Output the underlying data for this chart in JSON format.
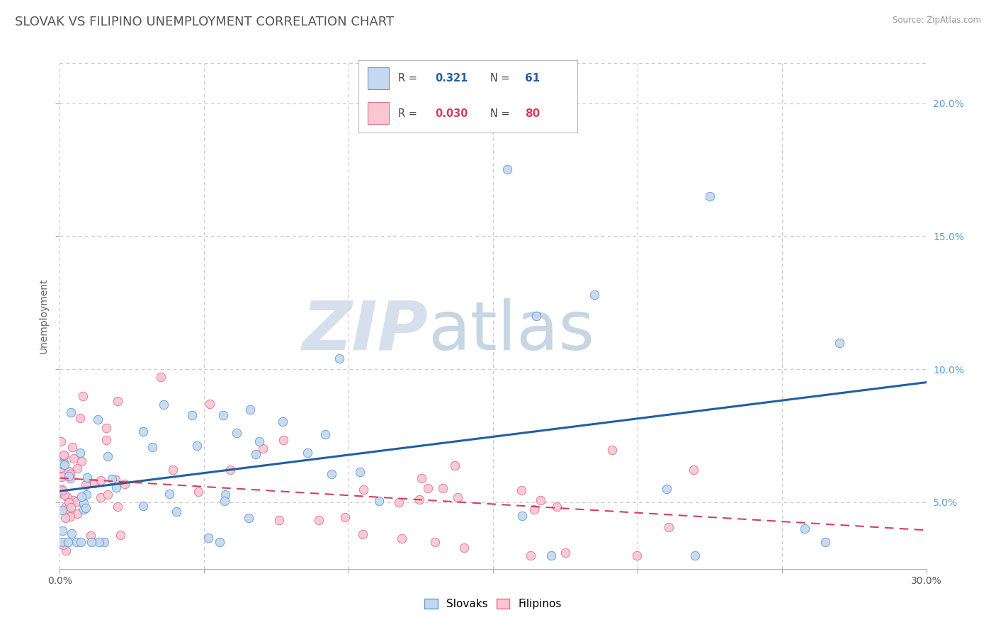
{
  "title": "SLOVAK VS FILIPINO UNEMPLOYMENT CORRELATION CHART",
  "source": "Source: ZipAtlas.com",
  "ylabel": "Unemployment",
  "xlim": [
    0.0,
    0.3
  ],
  "ylim": [
    0.025,
    0.215
  ],
  "xticks": [
    0.0,
    0.05,
    0.1,
    0.15,
    0.2,
    0.25,
    0.3
  ],
  "xtick_labels": [
    "0.0%",
    "",
    "",
    "",
    "",
    "",
    "30.0%"
  ],
  "ytick_vals_right": [
    0.05,
    0.1,
    0.15,
    0.2
  ],
  "ytick_labels_right": [
    "5.0%",
    "10.0%",
    "15.0%",
    "20.0%"
  ],
  "slovak_color": "#c5d8ef",
  "slovak_edge_color": "#5b9bd5",
  "filipino_color": "#f9c6d2",
  "filipino_edge_color": "#e07090",
  "trend_slovak_color": "#2060a0",
  "trend_filipino_color": "#d04060",
  "R_slovak": 0.321,
  "N_slovak": 61,
  "R_filipino": 0.03,
  "N_filipino": 80,
  "background_color": "#ffffff",
  "grid_color": "#c8c8c8",
  "title_color": "#555555",
  "title_fontsize": 13,
  "watermark_zip_color": "#c0cfe0",
  "watermark_atlas_color": "#b8cce0",
  "legend_label_slovak": "Slovaks",
  "legend_label_filipino": "Filipinos",
  "slovak_trend_start_y": 0.052,
  "slovak_trend_end_y": 0.095,
  "filipino_trend_start_y": 0.052,
  "filipino_trend_end_y": 0.053
}
